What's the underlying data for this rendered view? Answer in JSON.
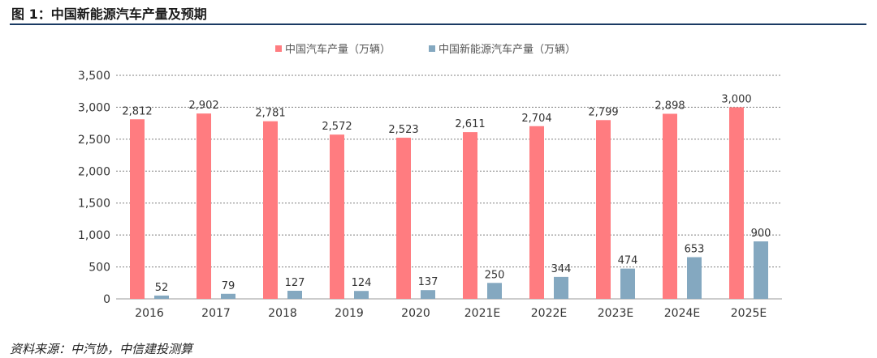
{
  "header": {
    "title": "图 1：中国新能源汽车产量及预期"
  },
  "footer": {
    "source": "资料来源：中汽协，中信建投测算"
  },
  "colors": {
    "series1": "#FF7C80",
    "series2": "#84A8C0",
    "grid": "#808080",
    "rule": "#1a3a63"
  },
  "chart_data": {
    "type": "bar",
    "categories": [
      "2016",
      "2017",
      "2018",
      "2019",
      "2020",
      "2021E",
      "2022E",
      "2023E",
      "2024E",
      "2025E"
    ],
    "series": [
      {
        "name": "中国汽车产量（万辆）",
        "values": [
          2812,
          2902,
          2781,
          2572,
          2523,
          2611,
          2704,
          2799,
          2898,
          3000
        ]
      },
      {
        "name": "中国新能源汽车产量（万辆）",
        "values": [
          52,
          79,
          127,
          124,
          137,
          250,
          344,
          474,
          653,
          900
        ]
      }
    ],
    "yticks": [
      0,
      500,
      1000,
      1500,
      2000,
      2500,
      3000,
      3500
    ],
    "ylim": [
      0,
      3500
    ],
    "grid": "horizontal-dashed",
    "legend": "top-center"
  }
}
